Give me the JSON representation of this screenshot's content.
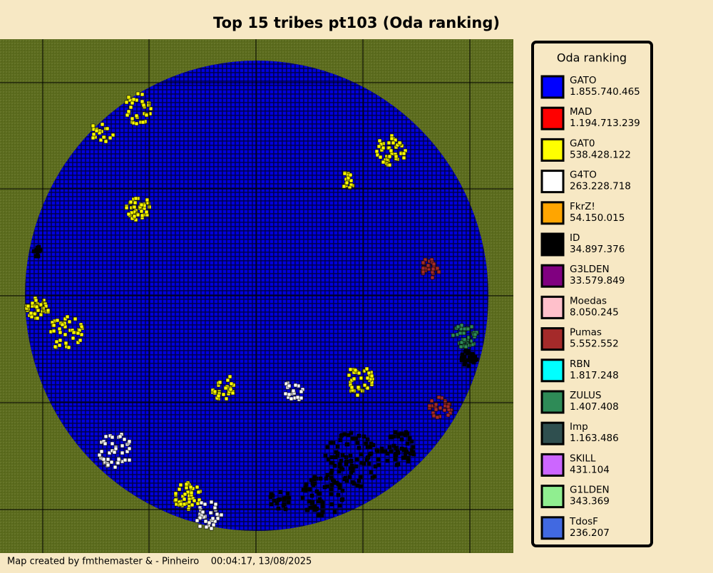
{
  "title": "Top 15 tribes pt103 (Oda ranking)",
  "legend": {
    "title": "Oda ranking",
    "entries": [
      {
        "name": "GATO",
        "points": "1.855.740.465",
        "color": "#0000ff"
      },
      {
        "name": "MAD",
        "points": "1.194.713.239",
        "color": "#ff0000"
      },
      {
        "name": "GAT0",
        "points": "538.428.122",
        "color": "#ffff00"
      },
      {
        "name": "G4TO",
        "points": "263.228.718",
        "color": "#ffffff"
      },
      {
        "name": "FkrZ!",
        "points": "54.150.015",
        "color": "#ffa500"
      },
      {
        "name": "ID",
        "points": "34.897.376",
        "color": "#000000"
      },
      {
        "name": "G3LDEN",
        "points": "33.579.849",
        "color": "#800080"
      },
      {
        "name": "Moedas",
        "points": "8.050.245",
        "color": "#ffc0cb"
      },
      {
        "name": "Pumas",
        "points": "5.552.552",
        "color": "#a52a2a"
      },
      {
        "name": "RBN",
        "points": "1.817.248",
        "color": "#00ffff"
      },
      {
        "name": "ZULUS",
        "points": "1.407.408",
        "color": "#2e8b57"
      },
      {
        "name": "Imp",
        "points": "1.163.486",
        "color": "#2f4f4f"
      },
      {
        "name": "SKILL",
        "points": "431.104",
        "color": "#cc66ff"
      },
      {
        "name": "G1LDEN",
        "points": "343.369",
        "color": "#90ee90"
      },
      {
        "name": "TdosF",
        "points": "236.207",
        "color": "#4169e1"
      }
    ]
  },
  "footer": "Map created by fmthemaster & - Pinheiro    00:04:17, 13/08/2025"
}
